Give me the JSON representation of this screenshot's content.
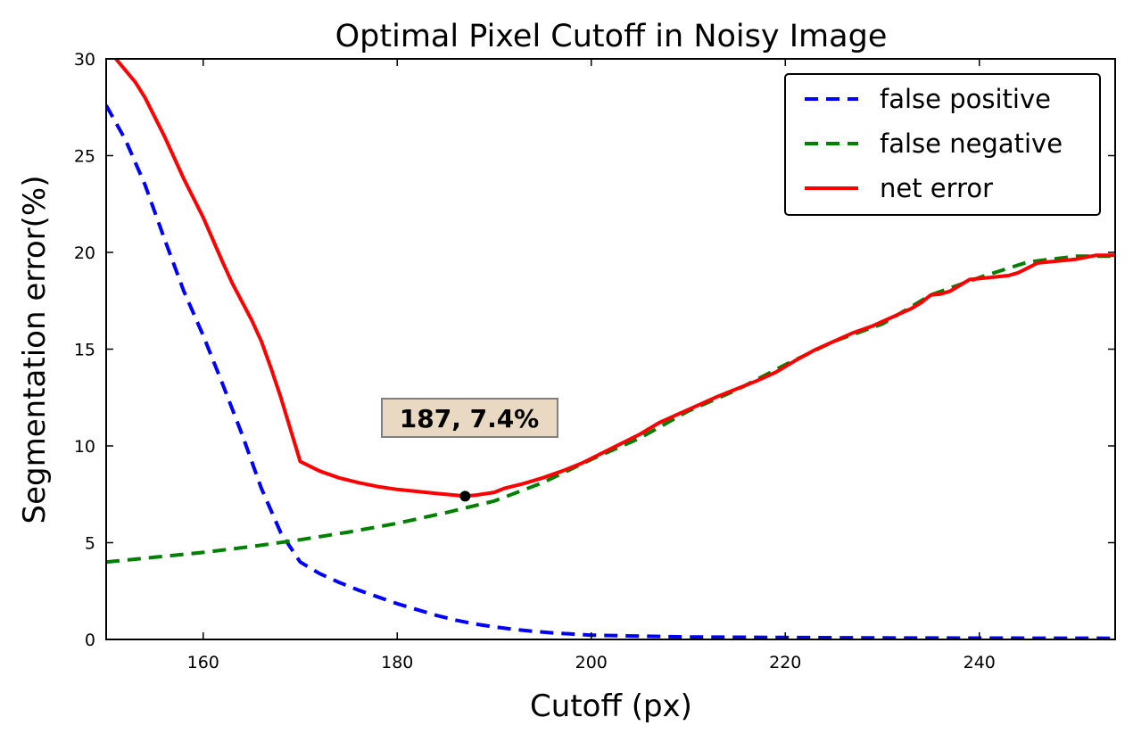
{
  "chart_data": {
    "type": "line",
    "title": "Optimal Pixel Cutoff in Noisy Image",
    "xlabel": "Cutoff (px)",
    "ylabel": "Segmentation error(%)",
    "xlim": [
      150,
      254
    ],
    "ylim": [
      0,
      30
    ],
    "xticks": [
      160,
      180,
      200,
      220,
      240
    ],
    "yticks": [
      0,
      5,
      10,
      15,
      20,
      25,
      30
    ],
    "grid": false,
    "legend_position": "top-right",
    "series": [
      {
        "name": "false positive",
        "color": "#0000ff",
        "style": "dashed",
        "x": [
          150,
          152,
          154,
          156,
          158,
          160,
          162,
          164,
          166,
          168,
          170,
          172,
          174,
          176,
          178,
          180,
          182,
          184,
          186,
          188,
          190,
          192,
          194,
          196,
          198,
          200,
          205,
          210,
          220,
          230,
          240,
          254
        ],
        "y": [
          27.6,
          25.8,
          23.5,
          20.7,
          18.0,
          15.7,
          13.2,
          10.6,
          7.8,
          5.5,
          4.0,
          3.4,
          2.95,
          2.55,
          2.2,
          1.85,
          1.55,
          1.25,
          1.0,
          0.8,
          0.65,
          0.52,
          0.42,
          0.34,
          0.28,
          0.22,
          0.17,
          0.13,
          0.1,
          0.08,
          0.07,
          0.06
        ]
      },
      {
        "name": "false negative",
        "color": "#008000",
        "style": "dashed",
        "x": [
          150,
          155,
          160,
          165,
          170,
          175,
          180,
          185,
          190,
          195,
          200,
          205,
          210,
          215,
          220,
          225,
          230,
          235,
          240,
          245,
          250,
          254
        ],
        "y": [
          4.0,
          4.25,
          4.5,
          4.8,
          5.15,
          5.55,
          6.0,
          6.55,
          7.15,
          8.1,
          9.3,
          10.4,
          11.8,
          12.9,
          14.2,
          15.4,
          16.3,
          17.8,
          18.7,
          19.5,
          19.8,
          19.8
        ]
      },
      {
        "name": "net error",
        "color": "#ff0000",
        "style": "solid",
        "x": [
          151,
          153,
          154,
          156,
          158,
          160,
          162,
          163,
          165,
          166,
          167,
          168,
          170,
          172,
          174,
          176,
          178,
          180,
          182,
          184,
          186,
          187,
          188,
          190,
          191,
          193,
          195,
          197,
          199,
          201,
          203,
          205,
          207,
          209,
          211,
          213,
          215,
          217,
          219,
          221,
          223,
          225,
          227,
          229,
          231,
          233,
          234,
          235,
          236,
          237,
          238,
          239,
          241,
          243,
          244,
          245,
          246,
          248,
          249,
          250,
          252,
          254
        ],
        "y": [
          30.0,
          28.8,
          28.0,
          26.0,
          23.8,
          21.8,
          19.5,
          18.4,
          16.5,
          15.4,
          14.0,
          12.5,
          9.2,
          8.7,
          8.35,
          8.1,
          7.9,
          7.75,
          7.65,
          7.55,
          7.45,
          7.4,
          7.45,
          7.6,
          7.8,
          8.05,
          8.35,
          8.7,
          9.1,
          9.6,
          10.1,
          10.6,
          11.2,
          11.65,
          12.1,
          12.55,
          12.95,
          13.35,
          13.8,
          14.4,
          14.95,
          15.4,
          15.85,
          16.2,
          16.65,
          17.1,
          17.4,
          17.8,
          17.85,
          18.0,
          18.3,
          18.6,
          18.7,
          18.8,
          18.95,
          19.2,
          19.45,
          19.55,
          19.6,
          19.65,
          19.85,
          19.85
        ]
      }
    ],
    "annotation": {
      "text": "187, 7.4%",
      "x": 187,
      "y": 7.4,
      "box_color": "#e9d8c2"
    }
  }
}
